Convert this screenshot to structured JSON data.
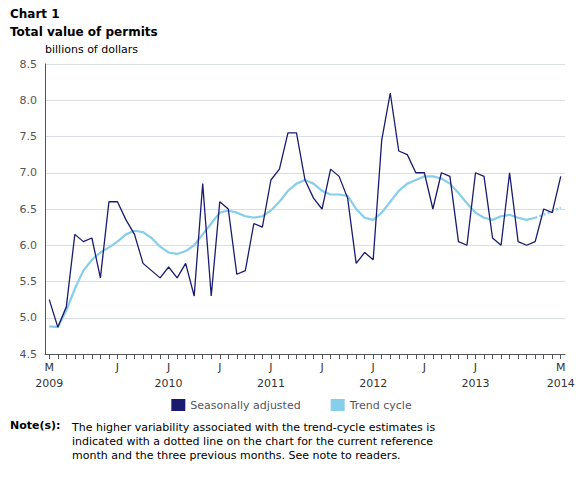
{
  "chart_data": {
    "type": "line",
    "title": "Chart 1",
    "subtitle": "Total value of permits",
    "ylabel": "billions of dollars",
    "categories": [
      "M",
      null,
      null,
      null,
      null,
      null,
      null,
      null,
      "J",
      null,
      null,
      null,
      null,
      null,
      "J",
      null,
      null,
      null,
      null,
      null,
      "J",
      null,
      null,
      null,
      null,
      null,
      "J",
      null,
      null,
      null,
      null,
      null,
      "J",
      null,
      null,
      null,
      null,
      null,
      "J",
      null,
      null,
      null,
      null,
      null,
      "J",
      null,
      null,
      null,
      null,
      null,
      "J",
      null,
      null,
      null,
      null,
      null,
      null,
      null,
      null,
      null,
      "M"
    ],
    "year_categories": [
      "2009",
      null,
      null,
      null,
      null,
      null,
      null,
      null,
      null,
      null,
      null,
      null,
      null,
      null,
      "2010",
      null,
      null,
      null,
      null,
      null,
      null,
      null,
      null,
      null,
      null,
      null,
      "2011",
      null,
      null,
      null,
      null,
      null,
      null,
      null,
      null,
      null,
      null,
      null,
      "2012",
      null,
      null,
      null,
      null,
      null,
      null,
      null,
      null,
      null,
      null,
      null,
      "2013",
      null,
      null,
      null,
      null,
      null,
      null,
      null,
      null,
      null,
      "2014"
    ],
    "series": [
      {
        "name": "Seasonally adjusted",
        "color": "#1a1a6e",
        "line_style": "solid",
        "values": [
          5.25,
          4.87,
          5.15,
          6.15,
          6.05,
          6.1,
          5.55,
          6.6,
          6.6,
          6.35,
          6.15,
          5.75,
          5.65,
          5.55,
          5.7,
          5.55,
          5.75,
          5.3,
          6.85,
          5.3,
          6.6,
          6.5,
          5.6,
          5.65,
          6.3,
          6.25,
          6.9,
          7.05,
          7.55,
          7.55,
          6.9,
          6.65,
          6.5,
          7.05,
          6.95,
          6.65,
          5.75,
          5.9,
          5.8,
          7.45,
          8.1,
          7.3,
          7.25,
          7.0,
          7.0,
          6.5,
          7.0,
          6.95,
          6.05,
          6.0,
          7.0,
          6.95,
          6.1,
          6.0,
          7.0,
          6.05,
          6.0,
          6.05,
          6.5,
          6.45,
          6.95
        ]
      },
      {
        "name": "Trend cycle",
        "color": "#87ceeb",
        "line_style": "solid",
        "values": [
          4.88,
          4.87,
          5.1,
          5.4,
          5.65,
          5.8,
          5.9,
          5.97,
          6.05,
          6.15,
          6.2,
          6.18,
          6.1,
          5.98,
          5.9,
          5.88,
          5.92,
          6.0,
          6.15,
          6.3,
          6.45,
          6.48,
          6.45,
          6.4,
          6.38,
          6.4,
          6.48,
          6.6,
          6.75,
          6.85,
          6.9,
          6.85,
          6.75,
          6.7,
          6.7,
          6.68,
          6.5,
          6.38,
          6.35,
          6.45,
          6.6,
          6.75,
          6.85,
          6.9,
          6.95,
          6.95,
          6.92,
          6.85,
          6.72,
          6.58,
          6.45,
          6.38,
          6.35,
          6.4,
          6.42,
          6.38,
          6.35,
          6.38,
          null,
          null,
          null
        ]
      },
      {
        "name": "Trend cycle",
        "color": "#87ceeb",
        "line_style": "dotted",
        "values": [
          null,
          null,
          null,
          null,
          null,
          null,
          null,
          null,
          null,
          null,
          null,
          null,
          null,
          null,
          null,
          null,
          null,
          null,
          null,
          null,
          null,
          null,
          null,
          null,
          null,
          null,
          null,
          null,
          null,
          null,
          null,
          null,
          null,
          null,
          null,
          null,
          null,
          null,
          null,
          null,
          null,
          null,
          null,
          null,
          null,
          null,
          null,
          null,
          null,
          null,
          null,
          null,
          null,
          null,
          null,
          null,
          null,
          6.38,
          6.42,
          6.47,
          6.52
        ]
      }
    ],
    "ylim": [
      4.5,
      8.5
    ],
    "yticks": [
      4.5,
      {
        "value": 5,
        "label": "5.0"
      },
      5.5,
      {
        "value": 6,
        "label": "6.0"
      },
      6.5,
      {
        "value": 7,
        "label": "7.0"
      },
      7.5,
      {
        "value": 8,
        "label": "8.0"
      },
      8.5
    ],
    "grid": true,
    "legend": "bottom",
    "note_label": "Note(s):",
    "note": "The higher variability associated with the trend-cycle estimates is\nindicated with a dotted line on the chart for the current reference\nmonth and the three previous months. See note to readers."
  }
}
